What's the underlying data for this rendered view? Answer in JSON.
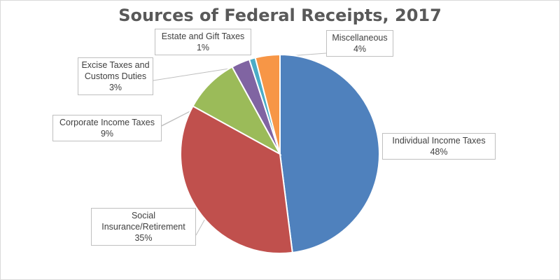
{
  "chart_data": {
    "type": "pie",
    "title": "Sources of Federal Receipts, 2017",
    "start_angle_deg": 0,
    "direction": "clockwise",
    "slices": [
      {
        "name": "Individual Income Taxes",
        "value": 48,
        "label": "48%",
        "color": "#4f81bd"
      },
      {
        "name": "Social Insurance/Retirement",
        "value": 35,
        "label": "35%",
        "color": "#c0504d"
      },
      {
        "name": "Corporate Income Taxes",
        "value": 9,
        "label": "9%",
        "color": "#9bbb59"
      },
      {
        "name": "Excise Taxes and Customs Duties",
        "value": 3,
        "label": "3%",
        "color": "#8064a2"
      },
      {
        "name": "Estate and Gift Taxes",
        "value": 1,
        "label": "1%",
        "color": "#4bacc6"
      },
      {
        "name": "Miscellaneous",
        "value": 4,
        "label": "4%",
        "color": "#f79646"
      }
    ]
  }
}
